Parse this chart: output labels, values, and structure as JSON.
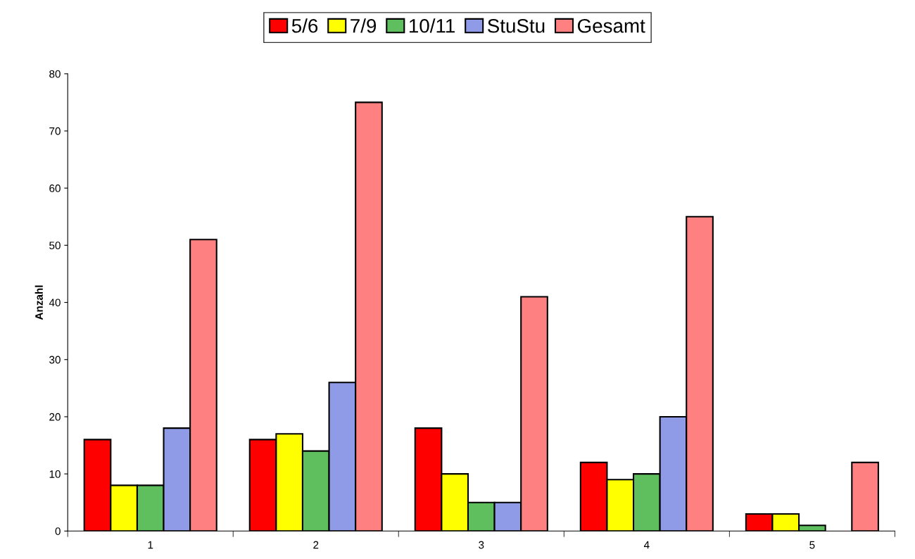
{
  "chart_data": {
    "type": "bar",
    "ylabel": "Anzahl",
    "categories": [
      "1",
      "2",
      "3",
      "4",
      "5"
    ],
    "series": [
      {
        "name": "5/6",
        "color": "#ff0000",
        "values": [
          16,
          16,
          18,
          12,
          3
        ]
      },
      {
        "name": "7/9",
        "color": "#ffff00",
        "values": [
          8,
          17,
          10,
          9,
          3
        ]
      },
      {
        "name": "10/11",
        "color": "#5fbf5f",
        "values": [
          8,
          14,
          5,
          10,
          1
        ]
      },
      {
        "name": "StuStu",
        "color": "#8f9be6",
        "values": [
          18,
          26,
          5,
          20,
          null
        ]
      },
      {
        "name": "Gesamt",
        "color": "#ff8080",
        "values": [
          51,
          75,
          41,
          55,
          12
        ]
      }
    ],
    "ylim": [
      0,
      80
    ],
    "yticks": [
      0,
      10,
      20,
      30,
      40,
      50,
      60,
      70,
      80
    ],
    "grid": false,
    "legend": "top"
  }
}
